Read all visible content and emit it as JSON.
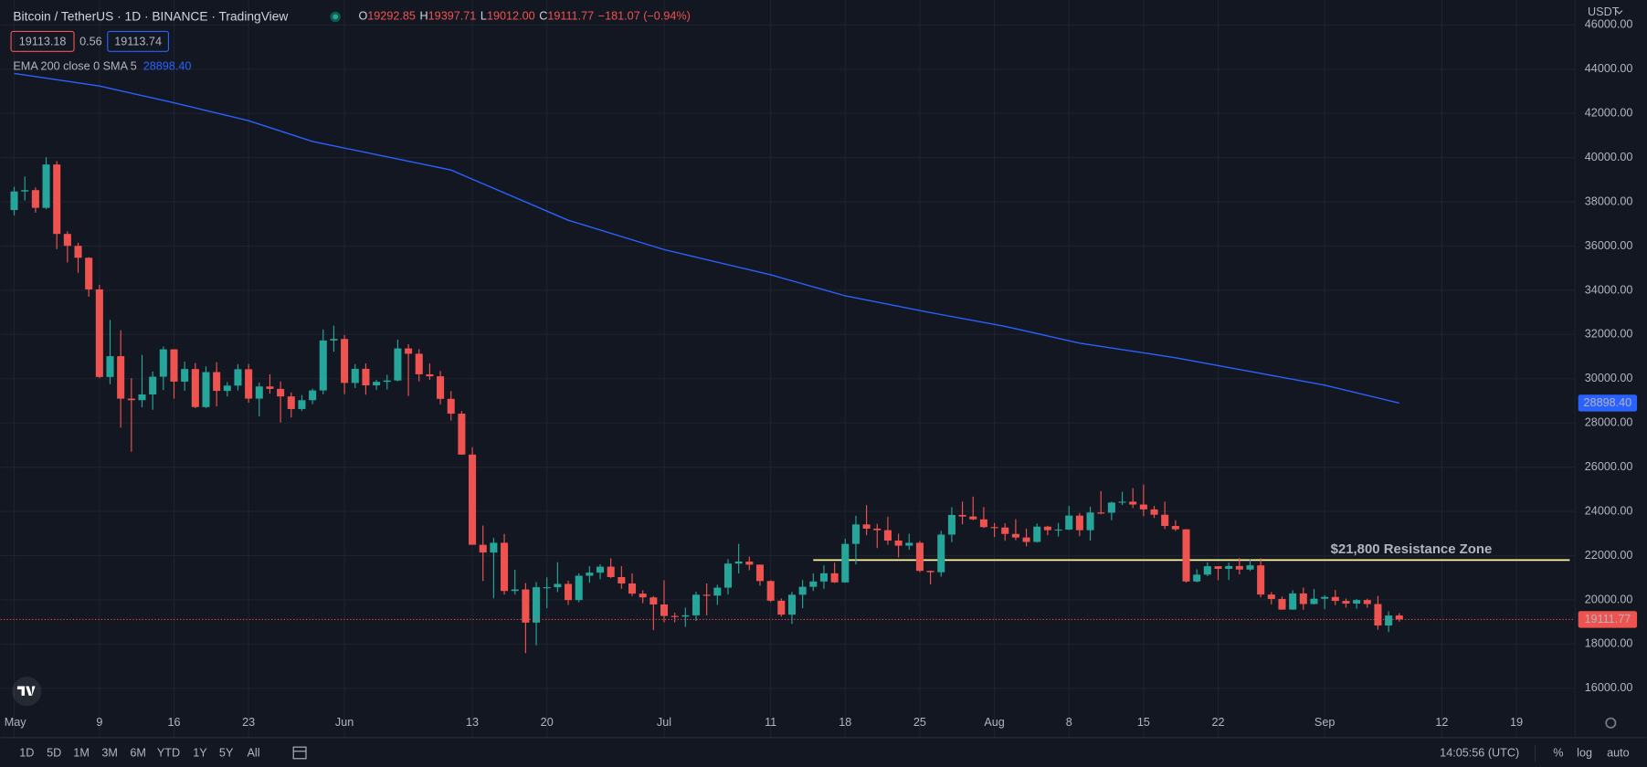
{
  "header": {
    "symbol": "Bitcoin / TetherUS · 1D · BINANCE · TradingView",
    "ohlc": [
      {
        "label": "O",
        "value": "19292.85"
      },
      {
        "label": "H",
        "value": "19397.71"
      },
      {
        "label": "L",
        "value": "19012.00"
      },
      {
        "label": "C",
        "value": "19111.77"
      }
    ],
    "change": "−181.07 (−0.94%)",
    "bid": "19113.18",
    "spread": "0.56",
    "ask": "19113.74"
  },
  "chart_data": {
    "type": "candlestick",
    "currency": "USDT",
    "x": [
      "05-01",
      "05-02",
      "05-03",
      "05-04",
      "05-05",
      "05-06",
      "05-07",
      "05-08",
      "05-09",
      "05-10",
      "05-11",
      "05-12",
      "05-13",
      "05-14",
      "05-15",
      "05-16",
      "05-17",
      "05-18",
      "05-19",
      "05-20",
      "05-21",
      "05-22",
      "05-23",
      "05-24",
      "05-25",
      "05-26",
      "05-27",
      "05-28",
      "05-29",
      "05-30",
      "05-31",
      "06-01",
      "06-02",
      "06-03",
      "06-04",
      "06-05",
      "06-06",
      "06-07",
      "06-08",
      "06-09",
      "06-10",
      "06-11",
      "06-12",
      "06-13",
      "06-14",
      "06-15",
      "06-16",
      "06-17",
      "06-18",
      "06-19",
      "06-20",
      "06-21",
      "06-22",
      "06-23",
      "06-24",
      "06-25",
      "06-26",
      "06-27",
      "06-28",
      "06-29",
      "06-30",
      "07-01",
      "07-02",
      "07-03",
      "07-04",
      "07-05",
      "07-06",
      "07-07",
      "07-08",
      "07-09",
      "07-10",
      "07-11",
      "07-12",
      "07-13",
      "07-14",
      "07-15",
      "07-16",
      "07-17",
      "07-18",
      "07-19",
      "07-20",
      "07-21",
      "07-22",
      "07-23",
      "07-24",
      "07-25",
      "07-26",
      "07-27",
      "07-28",
      "07-29",
      "07-30",
      "07-31",
      "08-01",
      "08-02",
      "08-03",
      "08-04",
      "08-05",
      "08-06",
      "08-07",
      "08-08",
      "08-09",
      "08-10",
      "08-11",
      "08-12",
      "08-13",
      "08-14",
      "08-15",
      "08-16",
      "08-17",
      "08-18",
      "08-19",
      "08-20",
      "08-21",
      "08-22",
      "08-23",
      "08-24",
      "08-25",
      "08-26",
      "08-27",
      "08-28",
      "08-29",
      "08-30",
      "08-31",
      "09-01",
      "09-02",
      "09-03",
      "09-04",
      "09-05",
      "09-06",
      "09-07",
      "09-08",
      "09-09",
      "09-10",
      "09-11",
      "09-12",
      "09-13",
      "09-14",
      "09-15",
      "09-16",
      "09-17",
      "09-18",
      "09-19",
      "09-20",
      "09-21",
      "09-22",
      "09-23",
      "09-24"
    ],
    "ohlc": {
      "up_color": "#26a69a",
      "down_color": "#ef5350",
      "values": [
        [
          37630,
          38680,
          37390,
          38470
        ],
        [
          38470,
          39150,
          38060,
          38530
        ],
        [
          38530,
          38650,
          37510,
          37730
        ],
        [
          37730,
          40020,
          37670,
          39690
        ],
        [
          39690,
          39840,
          35860,
          36550
        ],
        [
          36550,
          36660,
          35260,
          36010
        ],
        [
          36010,
          36150,
          34790,
          35470
        ],
        [
          35470,
          35500,
          33710,
          34040
        ],
        [
          34040,
          34250,
          30030,
          30080
        ],
        [
          30080,
          32660,
          29750,
          31020
        ],
        [
          31020,
          32190,
          27790,
          29100
        ],
        [
          29100,
          30030,
          26700,
          29030
        ],
        [
          29030,
          31080,
          28710,
          29290
        ],
        [
          29290,
          30330,
          28600,
          30090
        ],
        [
          30090,
          31460,
          29490,
          31330
        ],
        [
          31330,
          31330,
          29100,
          29870
        ],
        [
          29870,
          30770,
          29450,
          30440
        ],
        [
          30440,
          30710,
          28670,
          28720
        ],
        [
          28720,
          30560,
          28670,
          30300
        ],
        [
          30300,
          30750,
          28750,
          29450
        ],
        [
          29450,
          29850,
          29200,
          29690
        ],
        [
          29690,
          30660,
          29470,
          30430
        ],
        [
          30430,
          30670,
          28920,
          29100
        ],
        [
          29100,
          29830,
          28300,
          29650
        ],
        [
          29650,
          30200,
          29330,
          29540
        ],
        [
          29540,
          29880,
          28020,
          29200
        ],
        [
          29200,
          29380,
          28250,
          28630
        ],
        [
          28630,
          29260,
          28540,
          29030
        ],
        [
          29030,
          29550,
          28850,
          29470
        ],
        [
          29470,
          32230,
          29300,
          31730
        ],
        [
          31730,
          32400,
          31220,
          31800
        ],
        [
          31800,
          31980,
          29300,
          29810
        ],
        [
          29810,
          30660,
          29580,
          30450
        ],
        [
          30450,
          30690,
          29280,
          29700
        ],
        [
          29700,
          29950,
          29500,
          29860
        ],
        [
          29860,
          30180,
          29510,
          29920
        ],
        [
          29920,
          31770,
          29880,
          31370
        ],
        [
          31370,
          31560,
          29220,
          31130
        ],
        [
          31130,
          31340,
          29880,
          30200
        ],
        [
          30200,
          30690,
          29950,
          30110
        ],
        [
          30110,
          30350,
          28840,
          29090
        ],
        [
          29090,
          29440,
          28110,
          28420
        ],
        [
          28420,
          28540,
          26560,
          26570
        ],
        [
          26570,
          26900,
          22600,
          22490
        ],
        [
          22490,
          23360,
          20850,
          22140
        ],
        [
          22140,
          22800,
          20070,
          22580
        ],
        [
          22580,
          22980,
          20240,
          20400
        ],
        [
          20400,
          21360,
          20240,
          20470
        ],
        [
          20470,
          20760,
          17590,
          18970
        ],
        [
          18970,
          20800,
          17940,
          20570
        ],
        [
          20570,
          21020,
          19620,
          20570
        ],
        [
          20570,
          21700,
          20350,
          20720
        ],
        [
          20720,
          20860,
          19770,
          19990
        ],
        [
          19990,
          21200,
          19890,
          21090
        ],
        [
          21090,
          21520,
          20770,
          21230
        ],
        [
          21230,
          21610,
          20930,
          21500
        ],
        [
          21500,
          21880,
          20980,
          21030
        ],
        [
          21030,
          21520,
          20500,
          20740
        ],
        [
          20740,
          21200,
          20170,
          20280
        ],
        [
          20280,
          20430,
          19850,
          20110
        ],
        [
          20110,
          20170,
          18630,
          19790
        ],
        [
          19790,
          20880,
          18980,
          19270
        ],
        [
          19270,
          19420,
          18980,
          19240
        ],
        [
          19240,
          19650,
          18780,
          19300
        ],
        [
          19300,
          20370,
          19050,
          20230
        ],
        [
          20230,
          20740,
          19300,
          20190
        ],
        [
          20190,
          20680,
          19770,
          20550
        ],
        [
          20550,
          21840,
          20240,
          21640
        ],
        [
          21640,
          22530,
          21190,
          21730
        ],
        [
          21730,
          21950,
          21340,
          21590
        ],
        [
          21590,
          21600,
          20640,
          20850
        ],
        [
          20850,
          20880,
          19900,
          19960
        ],
        [
          19960,
          20060,
          19240,
          19330
        ],
        [
          19330,
          20360,
          18910,
          20230
        ],
        [
          20230,
          20900,
          19620,
          20590
        ],
        [
          20590,
          21200,
          20400,
          20830
        ],
        [
          20830,
          21560,
          20500,
          21200
        ],
        [
          21200,
          21680,
          20760,
          20790
        ],
        [
          20790,
          22760,
          20770,
          22530
        ],
        [
          22530,
          23800,
          21600,
          23410
        ],
        [
          23410,
          24280,
          22920,
          23220
        ],
        [
          23220,
          23440,
          22340,
          23150
        ],
        [
          23150,
          23760,
          22490,
          22680
        ],
        [
          22680,
          22990,
          21920,
          22450
        ],
        [
          22450,
          22990,
          22260,
          22580
        ],
        [
          22580,
          22660,
          21250,
          21310
        ],
        [
          21310,
          21320,
          20700,
          21250
        ],
        [
          21250,
          23120,
          21050,
          22950
        ],
        [
          22950,
          24190,
          22610,
          23840
        ],
        [
          23840,
          24440,
          23410,
          23770
        ],
        [
          23770,
          24670,
          23600,
          23640
        ],
        [
          23640,
          24200,
          23250,
          23290
        ],
        [
          23290,
          23480,
          22840,
          23270
        ],
        [
          23270,
          23460,
          22670,
          22980
        ],
        [
          22980,
          23650,
          22700,
          22820
        ],
        [
          22820,
          23220,
          22420,
          22620
        ],
        [
          22620,
          23450,
          22590,
          23310
        ],
        [
          23310,
          23350,
          22920,
          23150
        ],
        [
          23150,
          23480,
          22860,
          23180
        ],
        [
          23180,
          24250,
          23150,
          23810
        ],
        [
          23810,
          23930,
          22880,
          23150
        ],
        [
          23150,
          24210,
          22680,
          23950
        ],
        [
          23950,
          24920,
          23870,
          23940
        ],
        [
          23940,
          24440,
          23600,
          24400
        ],
        [
          24400,
          24890,
          24290,
          24440
        ],
        [
          24440,
          25050,
          24150,
          24310
        ],
        [
          24310,
          25210,
          23780,
          24090
        ],
        [
          24090,
          24250,
          23700,
          23850
        ],
        [
          23850,
          24440,
          23200,
          23340
        ],
        [
          23340,
          23600,
          23110,
          23190
        ],
        [
          23190,
          23200,
          20780,
          20830
        ],
        [
          20830,
          21380,
          20790,
          21140
        ],
        [
          21140,
          21700,
          21070,
          21520
        ],
        [
          21520,
          21520,
          20890,
          21400
        ],
        [
          21400,
          21680,
          20900,
          21530
        ],
        [
          21530,
          21890,
          21150,
          21370
        ],
        [
          21370,
          21820,
          21300,
          21560
        ],
        [
          21560,
          21880,
          20110,
          20240
        ],
        [
          20240,
          20350,
          19800,
          20040
        ],
        [
          20040,
          20150,
          19550,
          19560
        ],
        [
          19560,
          20430,
          19550,
          20290
        ],
        [
          20290,
          20560,
          19550,
          19810
        ],
        [
          19810,
          20490,
          19790,
          20050
        ],
        [
          20050,
          20210,
          19580,
          20130
        ],
        [
          20130,
          20450,
          19760,
          19950
        ],
        [
          19950,
          20060,
          19650,
          19830
        ],
        [
          19830,
          20030,
          19600,
          19990
        ],
        [
          19990,
          20050,
          19640,
          19810
        ],
        [
          19810,
          20180,
          18650,
          18840
        ],
        [
          18840,
          19480,
          18540,
          19290
        ],
        [
          19292.85,
          19397.71,
          19012.0,
          19111.77
        ],
        null,
        null,
        null,
        null,
        null,
        null,
        null,
        null,
        null,
        null,
        null,
        null,
        null,
        null,
        null,
        null
      ]
    },
    "series": [
      {
        "name": "EMA 200 close 0 SMA 5",
        "color": "#2962ff",
        "x": [
          "05-01",
          "05-09",
          "05-16",
          "05-23",
          "05-29",
          "06-11",
          "06-22",
          "07-01",
          "07-11",
          "07-18",
          "07-26",
          "08-02",
          "08-09",
          "08-18",
          "08-26",
          "09-01",
          "09-08"
        ],
        "values": [
          43810,
          43240,
          42480,
          41670,
          40730,
          39440,
          37170,
          35840,
          34700,
          33750,
          32990,
          32370,
          31610,
          30950,
          30240,
          29710,
          28898.4
        ],
        "last_value_label": "28898.40"
      }
    ],
    "last_price": {
      "value": 19111.77,
      "label": "19111.77",
      "color": "#ef5350"
    },
    "annotation": {
      "label": "$21,800 Resistance Zone",
      "value": 21800,
      "from": "07-15",
      "to": "09-24",
      "color": "#fff59d"
    },
    "ylim": [
      13910,
      47130
    ],
    "yticks": [
      {
        "value": 16000,
        "label": "16000.00"
      },
      {
        "value": 18000,
        "label": "18000.00"
      },
      {
        "value": 20000,
        "label": "20000.00"
      },
      {
        "value": 22000,
        "label": "22000.00"
      },
      {
        "value": 24000,
        "label": "24000.00"
      },
      {
        "value": 26000,
        "label": "26000.00"
      },
      {
        "value": 28000,
        "label": "28000.00"
      },
      {
        "value": 30000,
        "label": "30000.00"
      },
      {
        "value": 32000,
        "label": "32000.00"
      },
      {
        "value": 34000,
        "label": "34000.00"
      },
      {
        "value": 36000,
        "label": "36000.00"
      },
      {
        "value": 38000,
        "label": "38000.00"
      },
      {
        "value": 40000,
        "label": "40000.00"
      },
      {
        "value": 42000,
        "label": "42000.00"
      },
      {
        "value": 44000,
        "label": "44000.00"
      },
      {
        "value": 46000,
        "label": "46000.00"
      }
    ],
    "xticks": [
      {
        "value": "05-01",
        "label": "May"
      },
      {
        "value": "05-09",
        "label": "9"
      },
      {
        "value": "05-16",
        "label": "16"
      },
      {
        "value": "05-23",
        "label": "23"
      },
      {
        "value": "06-01",
        "label": "Jun"
      },
      {
        "value": "06-13",
        "label": "13"
      },
      {
        "value": "06-20",
        "label": "20"
      },
      {
        "value": "07-01",
        "label": "Jul"
      },
      {
        "value": "07-11",
        "label": "11"
      },
      {
        "value": "07-18",
        "label": "18"
      },
      {
        "value": "07-25",
        "label": "25"
      },
      {
        "value": "08-01",
        "label": "Aug"
      },
      {
        "value": "08-08",
        "label": "8"
      },
      {
        "value": "08-15",
        "label": "15"
      },
      {
        "value": "08-22",
        "label": "22"
      },
      {
        "value": "09-01",
        "label": "Sep"
      },
      {
        "value": "09-12",
        "label": "12"
      },
      {
        "value": "09-19",
        "label": "19"
      }
    ],
    "grid": true
  },
  "toolbar": {
    "ranges": [
      "1D",
      "5D",
      "1M",
      "3M",
      "6M",
      "YTD",
      "1Y",
      "5Y",
      "All"
    ],
    "time": "14:05:56 (UTC)",
    "options": [
      "%",
      "log",
      "auto"
    ]
  }
}
